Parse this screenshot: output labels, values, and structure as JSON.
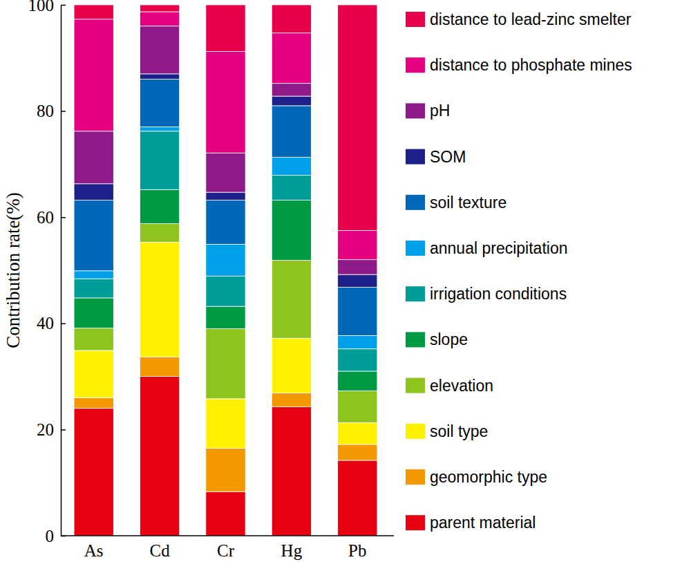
{
  "chart_data": {
    "type": "bar",
    "stacked": true,
    "ylabel": "Contribution rate(%)",
    "categories": [
      "As",
      "Cd",
      "Cr",
      "Hg",
      "Pb"
    ],
    "ylim": [
      0,
      100
    ],
    "yticks": [
      0,
      20,
      40,
      60,
      80,
      100
    ],
    "legend": "right",
    "series": [
      {
        "name": "parent material",
        "color": "#e60012",
        "values": [
          24.0,
          30.0,
          8.3,
          24.3,
          14.2
        ]
      },
      {
        "name": "geomorphic type",
        "color": "#f39800",
        "values": [
          2.0,
          3.7,
          8.2,
          2.6,
          3.0
        ]
      },
      {
        "name": "soil type",
        "color": "#fff100",
        "values": [
          8.9,
          21.6,
          9.3,
          10.3,
          4.1
        ]
      },
      {
        "name": "elevation",
        "color": "#8fc31f",
        "values": [
          4.2,
          3.5,
          13.2,
          14.7,
          6.0
        ]
      },
      {
        "name": "slope",
        "color": "#009944",
        "values": [
          5.7,
          6.4,
          4.2,
          11.3,
          3.7
        ]
      },
      {
        "name": "irrigation conditions",
        "color": "#009e96",
        "values": [
          3.6,
          11.0,
          5.7,
          4.7,
          4.2
        ]
      },
      {
        "name": "annual precipitation",
        "color": "#00a0e9",
        "values": [
          1.5,
          0.8,
          6.0,
          3.4,
          2.5
        ]
      },
      {
        "name": "soil texture",
        "color": "#0068b7",
        "values": [
          13.3,
          9.0,
          8.3,
          9.7,
          9.1
        ]
      },
      {
        "name": "SOM",
        "color": "#1d2088",
        "values": [
          3.1,
          1.0,
          1.5,
          1.8,
          2.4
        ]
      },
      {
        "name": "pH",
        "color": "#8e1a8a",
        "values": [
          9.9,
          9.0,
          7.4,
          2.4,
          2.8
        ]
      },
      {
        "name": "distance to phosphate mines",
        "color": "#e4007f",
        "values": [
          21.1,
          2.7,
          19.1,
          9.5,
          5.5
        ]
      },
      {
        "name": "distance to lead-zinc smelter",
        "color": "#e8004a",
        "values": [
          2.7,
          1.3,
          8.8,
          5.3,
          42.5
        ]
      }
    ]
  }
}
